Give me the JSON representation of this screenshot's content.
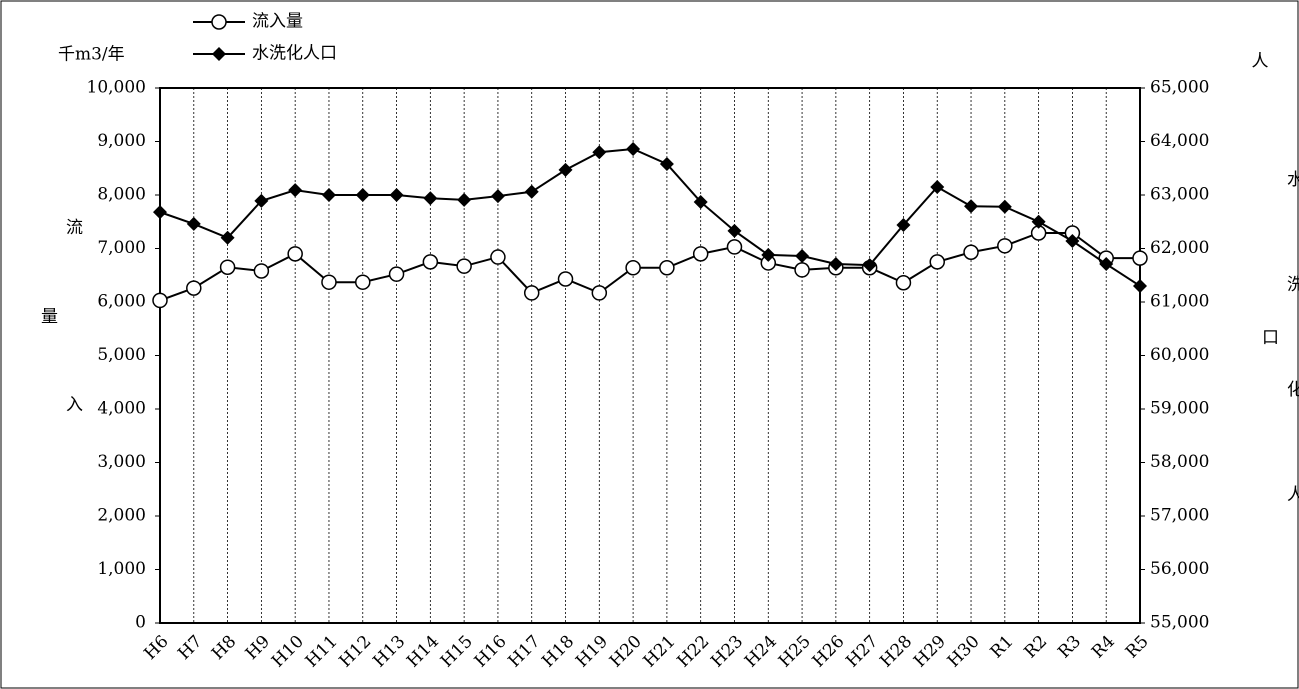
{
  "chart_data": {
    "type": "line",
    "y_unit": "千m3/年",
    "y2_unit": "人",
    "y_label": "流入量",
    "y2_label": "水洗化人口",
    "categories": [
      "H6",
      "H7",
      "H8",
      "H9",
      "H10",
      "H11",
      "H12",
      "H13",
      "H14",
      "H15",
      "H16",
      "H17",
      "H18",
      "H19",
      "H20",
      "H21",
      "H22",
      "H23",
      "H24",
      "H25",
      "H26",
      "H27",
      "H28",
      "H29",
      "H30",
      "R1",
      "R2",
      "R3",
      "R4",
      "R5"
    ],
    "series": [
      {
        "name": "流入量",
        "color": "#000000",
        "marker": "open-circle",
        "values": [
          6030,
          6260,
          6650,
          6580,
          6900,
          6370,
          6370,
          6520,
          6750,
          6670,
          6840,
          6170,
          6430,
          6170,
          6640,
          6640,
          6900,
          7030,
          6730,
          6600,
          6640,
          6640,
          6360,
          6750,
          6930,
          7050,
          7290,
          7290,
          6820,
          6820
        ]
      },
      {
        "name": "水洗化人口",
        "color": "#000000",
        "marker": "diamond",
        "axis": "y2",
        "values": [
          62680,
          62460,
          62200,
          62890,
          63090,
          63000,
          63000,
          63000,
          62940,
          62910,
          62980,
          63060,
          63470,
          63800,
          63860,
          63580,
          62870,
          62330,
          61880,
          61860,
          61710,
          61690,
          62440,
          63150,
          62790,
          62780,
          62500,
          62140,
          61710,
          61300
        ]
      }
    ],
    "ylim": [
      0,
      10000
    ],
    "yticks": [
      0,
      {
        "value": 1000,
        "label": "1,000"
      },
      {
        "value": 2000,
        "label": "2,000"
      },
      {
        "value": 3000,
        "label": "3,000"
      },
      {
        "value": 4000,
        "label": "4,000"
      },
      {
        "value": 5000,
        "label": "5,000"
      },
      {
        "value": 6000,
        "label": "6,000"
      },
      {
        "value": 7000,
        "label": "7,000"
      },
      {
        "value": 8000,
        "label": "8,000"
      },
      {
        "value": 9000,
        "label": "9,000"
      },
      {
        "value": 10000,
        "label": "10,000"
      }
    ],
    "y2lim": [
      55000,
      65000
    ],
    "y2ticks": [
      {
        "value": 55000,
        "label": "55,000"
      },
      {
        "value": 56000,
        "label": "56,000"
      },
      {
        "value": 57000,
        "label": "57,000"
      },
      {
        "value": 58000,
        "label": "58,000"
      },
      {
        "value": 59000,
        "label": "59,000"
      },
      {
        "value": 60000,
        "label": "60,000"
      },
      {
        "value": 61000,
        "label": "61,000"
      },
      {
        "value": 62000,
        "label": "62,000"
      },
      {
        "value": 63000,
        "label": "63,000"
      },
      {
        "value": 64000,
        "label": "64,000"
      },
      {
        "value": 65000,
        "label": "65,000"
      }
    ],
    "grid": "x"
  }
}
